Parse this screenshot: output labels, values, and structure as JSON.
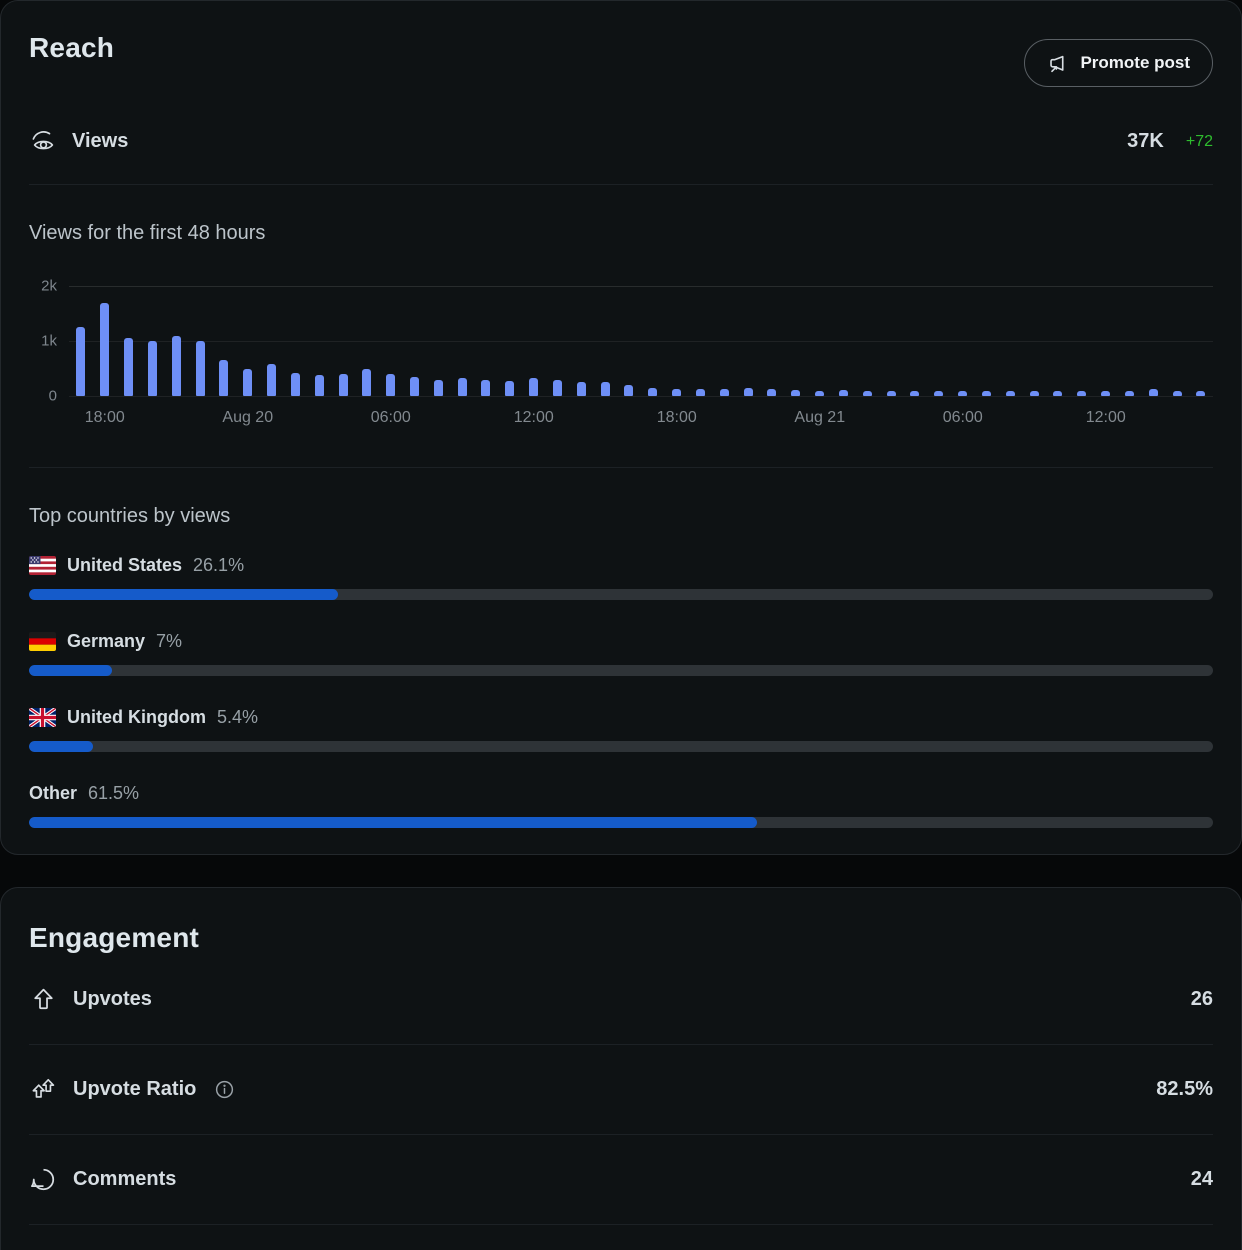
{
  "colors": {
    "card_background": "#0e1214",
    "page_background": "#060809",
    "chart_bar_blue": "#6e8ff6",
    "progress_fill_blue": "#155bca",
    "progress_track": "#2e3337",
    "delta_green": "#2ebd2e",
    "text_primary": "#d6dde2",
    "text_muted": "#82898f"
  },
  "reach": {
    "title": "Reach",
    "promote_button": "Promote post",
    "views_label": "Views",
    "views_value": "37K",
    "views_delta": "+72",
    "chart_title": "Views for the first 48 hours",
    "countries_title": "Top countries by views",
    "countries": [
      {
        "flag": "us-flag",
        "name": "United States",
        "percent_label": "26.1%",
        "value": 26.1
      },
      {
        "flag": "de-flag",
        "name": "Germany",
        "percent_label": "7%",
        "value": 7
      },
      {
        "flag": "gb-flag",
        "name": "United Kingdom",
        "percent_label": "5.4%",
        "value": 5.4
      },
      {
        "flag": null,
        "name": "Other",
        "percent_label": "61.5%",
        "value": 61.5
      }
    ]
  },
  "chart_data": {
    "type": "bar",
    "title": "Views for the first 48 hours",
    "ylabel": "",
    "xlabel": "",
    "ylim": [
      0,
      2000
    ],
    "ytick_labels": [
      "2k",
      "1k",
      "0"
    ],
    "grid": "horizontal",
    "interval": "hourly",
    "values": [
      1250,
      1700,
      1050,
      1000,
      1100,
      1000,
      650,
      500,
      580,
      420,
      380,
      400,
      500,
      400,
      350,
      300,
      320,
      300,
      280,
      320,
      300,
      260,
      250,
      200,
      150,
      130,
      120,
      130,
      150,
      130,
      110,
      100,
      110,
      90,
      80,
      90,
      90,
      90,
      100,
      90,
      90,
      90,
      80,
      90,
      90,
      120,
      90,
      80
    ],
    "xticks": [
      {
        "index": 1,
        "label": "18:00"
      },
      {
        "index": 7,
        "label": "Aug 20"
      },
      {
        "index": 13,
        "label": "06:00"
      },
      {
        "index": 19,
        "label": "12:00"
      },
      {
        "index": 25,
        "label": "18:00"
      },
      {
        "index": 31,
        "label": "Aug 21"
      },
      {
        "index": 37,
        "label": "06:00"
      },
      {
        "index": 43,
        "label": "12:00"
      }
    ]
  },
  "engagement": {
    "title": "Engagement",
    "rows": [
      {
        "icon": "upvote-icon",
        "label": "Upvotes",
        "value": "26",
        "has_info": false
      },
      {
        "icon": "upvote-ratio-icon",
        "label": "Upvote Ratio",
        "value": "82.5%",
        "has_info": true
      },
      {
        "icon": "comment-icon",
        "label": "Comments",
        "value": "24",
        "has_info": false
      }
    ]
  }
}
